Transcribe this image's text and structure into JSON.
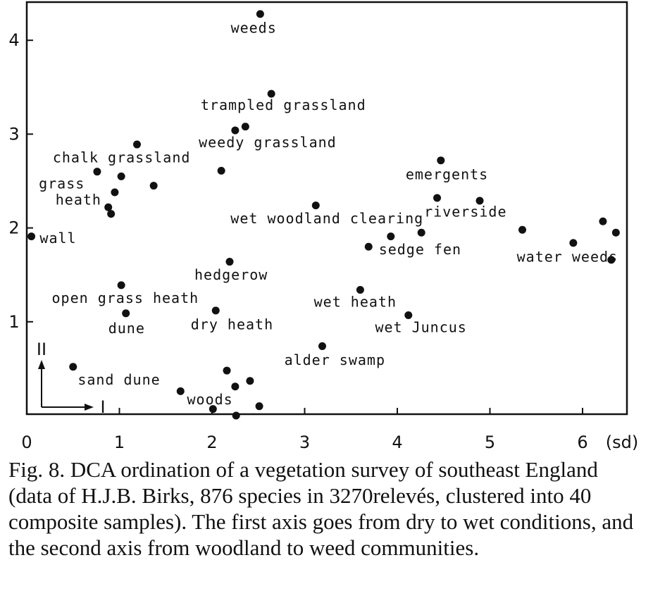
{
  "chart_data": {
    "type": "scatter",
    "xlim": [
      0,
      6.4
    ],
    "ylim": [
      0,
      4.3
    ],
    "x_ticks": [
      {
        "value": 0,
        "label": "0"
      },
      {
        "value": 1,
        "label": "1"
      },
      {
        "value": 2,
        "label": "2"
      },
      {
        "value": 3,
        "label": "3"
      },
      {
        "value": 4,
        "label": "4"
      },
      {
        "value": 5,
        "label": "5"
      },
      {
        "value": 6,
        "label": "6"
      }
    ],
    "x_unit": "(sd)",
    "y_ticks": [
      {
        "value": 1,
        "label": "1"
      },
      {
        "value": 2,
        "label": "2"
      },
      {
        "value": 3,
        "label": "3"
      },
      {
        "value": 4,
        "label": "4"
      }
    ],
    "axis_indicator": {
      "horizontal": "I",
      "vertical": "II"
    },
    "points": [
      {
        "x": 2.52,
        "y": 4.28
      },
      {
        "x": 2.64,
        "y": 3.43
      },
      {
        "x": 2.36,
        "y": 3.08
      },
      {
        "x": 2.25,
        "y": 3.04
      },
      {
        "x": 1.19,
        "y": 2.89
      },
      {
        "x": 0.76,
        "y": 2.6
      },
      {
        "x": 1.02,
        "y": 2.55
      },
      {
        "x": 2.1,
        "y": 2.61
      },
      {
        "x": 0.95,
        "y": 2.38
      },
      {
        "x": 1.37,
        "y": 2.45
      },
      {
        "x": 0.88,
        "y": 2.22
      },
      {
        "x": 0.91,
        "y": 2.15
      },
      {
        "x": 0.05,
        "y": 1.91
      },
      {
        "x": 3.12,
        "y": 2.24
      },
      {
        "x": 4.47,
        "y": 2.72
      },
      {
        "x": 4.43,
        "y": 2.32
      },
      {
        "x": 4.89,
        "y": 2.29
      },
      {
        "x": 4.26,
        "y": 1.95
      },
      {
        "x": 3.93,
        "y": 1.91
      },
      {
        "x": 3.69,
        "y": 1.8
      },
      {
        "x": 5.35,
        "y": 1.98
      },
      {
        "x": 5.9,
        "y": 1.84
      },
      {
        "x": 6.22,
        "y": 2.07
      },
      {
        "x": 6.36,
        "y": 1.95
      },
      {
        "x": 6.31,
        "y": 1.66
      },
      {
        "x": 2.19,
        "y": 1.64
      },
      {
        "x": 1.02,
        "y": 1.39
      },
      {
        "x": 1.07,
        "y": 1.09
      },
      {
        "x": 2.04,
        "y": 1.12
      },
      {
        "x": 3.6,
        "y": 1.34
      },
      {
        "x": 4.12,
        "y": 1.07
      },
      {
        "x": 3.19,
        "y": 0.74
      },
      {
        "x": 0.5,
        "y": 0.52
      },
      {
        "x": 2.16,
        "y": 0.48
      },
      {
        "x": 2.41,
        "y": 0.37
      },
      {
        "x": 2.25,
        "y": 0.31
      },
      {
        "x": 1.66,
        "y": 0.26
      },
      {
        "x": 2.01,
        "y": 0.07
      },
      {
        "x": 2.26,
        "y": 0.0
      },
      {
        "x": 2.51,
        "y": 0.1
      }
    ],
    "annotations": [
      {
        "text": "weeds",
        "x": 2.45,
        "y": 4.08,
        "anchor": "middle"
      },
      {
        "text": "trampled grassland",
        "x": 2.77,
        "y": 3.26,
        "anchor": "middle"
      },
      {
        "text": "weedy grassland",
        "x": 2.6,
        "y": 2.86,
        "anchor": "middle"
      },
      {
        "text": "chalk grassland",
        "x": 0.28,
        "y": 2.7,
        "anchor": "start"
      },
      {
        "text": "grass",
        "x": 0.13,
        "y": 2.42,
        "anchor": "start"
      },
      {
        "text": "heath",
        "x": 0.31,
        "y": 2.25,
        "anchor": "start"
      },
      {
        "text": "wall",
        "x": 0.14,
        "y": 1.84,
        "anchor": "start"
      },
      {
        "text": "wet woodland clearing",
        "x": 2.2,
        "y": 2.05,
        "anchor": "start"
      },
      {
        "text": "emergents",
        "x": 4.09,
        "y": 2.52,
        "anchor": "start"
      },
      {
        "text": "riverside",
        "x": 4.29,
        "y": 2.12,
        "anchor": "start"
      },
      {
        "text": "sedge fen",
        "x": 3.8,
        "y": 1.72,
        "anchor": "start"
      },
      {
        "text": "water weeds",
        "x": 5.29,
        "y": 1.64,
        "anchor": "start"
      },
      {
        "text": "hedgerow",
        "x": 1.81,
        "y": 1.45,
        "anchor": "start"
      },
      {
        "text": "open grass heath",
        "x": 0.27,
        "y": 1.2,
        "anchor": "start"
      },
      {
        "text": "wet heath",
        "x": 3.1,
        "y": 1.16,
        "anchor": "start"
      },
      {
        "text": "dune",
        "x": 0.88,
        "y": 0.88,
        "anchor": "start"
      },
      {
        "text": "dry heath",
        "x": 1.77,
        "y": 0.92,
        "anchor": "start"
      },
      {
        "text": "wet Juncus",
        "x": 3.76,
        "y": 0.89,
        "anchor": "start"
      },
      {
        "text": "alder swamp",
        "x": 2.78,
        "y": 0.54,
        "anchor": "start"
      },
      {
        "text": "sand dune",
        "x": 0.55,
        "y": 0.33,
        "anchor": "start"
      },
      {
        "text": "woods",
        "x": 1.73,
        "y": 0.12,
        "anchor": "start"
      }
    ]
  },
  "caption": {
    "text": "Fig. 8. DCA ordination of a vegetation survey of southeast England (data of H.J.B. Birks, 876 species in 3270relevés, clustered into 40 composite samples). The first axis goes from dry to wet conditions, and the second axis from woodland to weed communities."
  }
}
